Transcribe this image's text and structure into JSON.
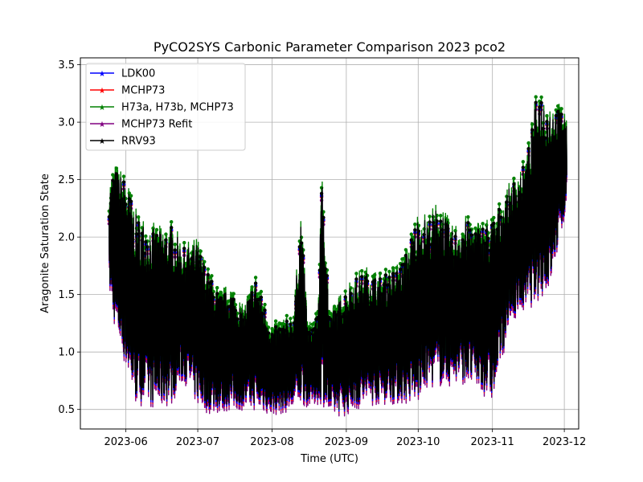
{
  "chart_data": {
    "type": "line",
    "title": "PyCO2SYS Carbonic Parameter Comparison 2023 pco2",
    "xlabel": "Time (UTC)",
    "ylabel": "Aragonite Saturation State",
    "x_range": [
      "2023-05-13",
      "2023-12-07"
    ],
    "ylim": [
      0.33,
      3.56
    ],
    "grid": true,
    "legend_position": "top-left",
    "x_ticks": [
      {
        "date": "2023-06-01",
        "label": "2023-06"
      },
      {
        "date": "2023-07-01",
        "label": "2023-07"
      },
      {
        "date": "2023-08-01",
        "label": "2023-08"
      },
      {
        "date": "2023-09-01",
        "label": "2023-09"
      },
      {
        "date": "2023-10-01",
        "label": "2023-10"
      },
      {
        "date": "2023-11-01",
        "label": "2023-11"
      },
      {
        "date": "2023-12-01",
        "label": "2023-12"
      }
    ],
    "y_ticks": [
      {
        "value": 0.5,
        "label": "0.5"
      },
      {
        "value": 1.0,
        "label": "1.0"
      },
      {
        "value": 1.5,
        "label": "1.5"
      },
      {
        "value": 2.0,
        "label": "2.0"
      },
      {
        "value": 2.5,
        "label": "2.5"
      },
      {
        "value": 3.0,
        "label": "3.0"
      },
      {
        "value": 3.5,
        "label": "3.5"
      }
    ],
    "envelope": {
      "x": [
        "2023-05-25",
        "2023-05-27",
        "2023-06-01",
        "2023-06-05",
        "2023-06-10",
        "2023-06-15",
        "2023-06-20",
        "2023-06-25",
        "2023-07-01",
        "2023-07-05",
        "2023-07-10",
        "2023-07-15",
        "2023-07-20",
        "2023-07-25",
        "2023-08-01",
        "2023-08-05",
        "2023-08-10",
        "2023-08-13",
        "2023-08-16",
        "2023-08-20",
        "2023-08-22",
        "2023-08-25",
        "2023-09-01",
        "2023-09-05",
        "2023-09-10",
        "2023-09-15",
        "2023-09-20",
        "2023-09-25",
        "2023-10-01",
        "2023-10-05",
        "2023-10-10",
        "2023-10-15",
        "2023-10-20",
        "2023-10-25",
        "2023-11-01",
        "2023-11-05",
        "2023-11-10",
        "2023-11-15",
        "2023-11-20",
        "2023-11-25",
        "2023-12-01",
        "2023-12-02"
      ],
      "upper": [
        2.4,
        2.6,
        2.5,
        2.2,
        2.1,
        2.05,
        2.1,
        1.9,
        1.95,
        1.7,
        1.5,
        1.55,
        1.35,
        1.65,
        1.2,
        1.25,
        1.3,
        2.2,
        1.2,
        1.3,
        2.65,
        1.3,
        1.55,
        1.65,
        1.7,
        1.65,
        1.7,
        1.8,
        2.2,
        2.15,
        2.3,
        2.05,
        2.15,
        2.1,
        2.15,
        2.3,
        2.5,
        2.65,
        3.3,
        3.15,
        3.1,
        2.95
      ],
      "lower": [
        1.6,
        1.3,
        0.9,
        0.6,
        0.58,
        0.55,
        0.6,
        0.8,
        0.58,
        0.52,
        0.52,
        0.55,
        0.55,
        0.55,
        0.5,
        0.52,
        0.55,
        0.58,
        0.58,
        0.6,
        0.6,
        0.5,
        0.5,
        0.55,
        0.58,
        0.6,
        0.6,
        0.6,
        0.6,
        0.75,
        0.75,
        0.75,
        0.78,
        0.72,
        0.62,
        1.0,
        1.35,
        1.4,
        1.5,
        1.6,
        2.2,
        2.4
      ]
    },
    "series": [
      {
        "name": "LDK00",
        "color": "#0000ff",
        "offset": -0.02
      },
      {
        "name": "MCHP73",
        "color": "#ff0000",
        "offset": -0.03
      },
      {
        "name": "H73a, H73b, MCHP73",
        "color": "#008000",
        "offset": 0.05
      },
      {
        "name": "MCHP73 Refit",
        "color": "#800080",
        "offset": -0.06
      },
      {
        "name": "RRV93",
        "color": "#000000",
        "offset": 0.0
      }
    ]
  }
}
